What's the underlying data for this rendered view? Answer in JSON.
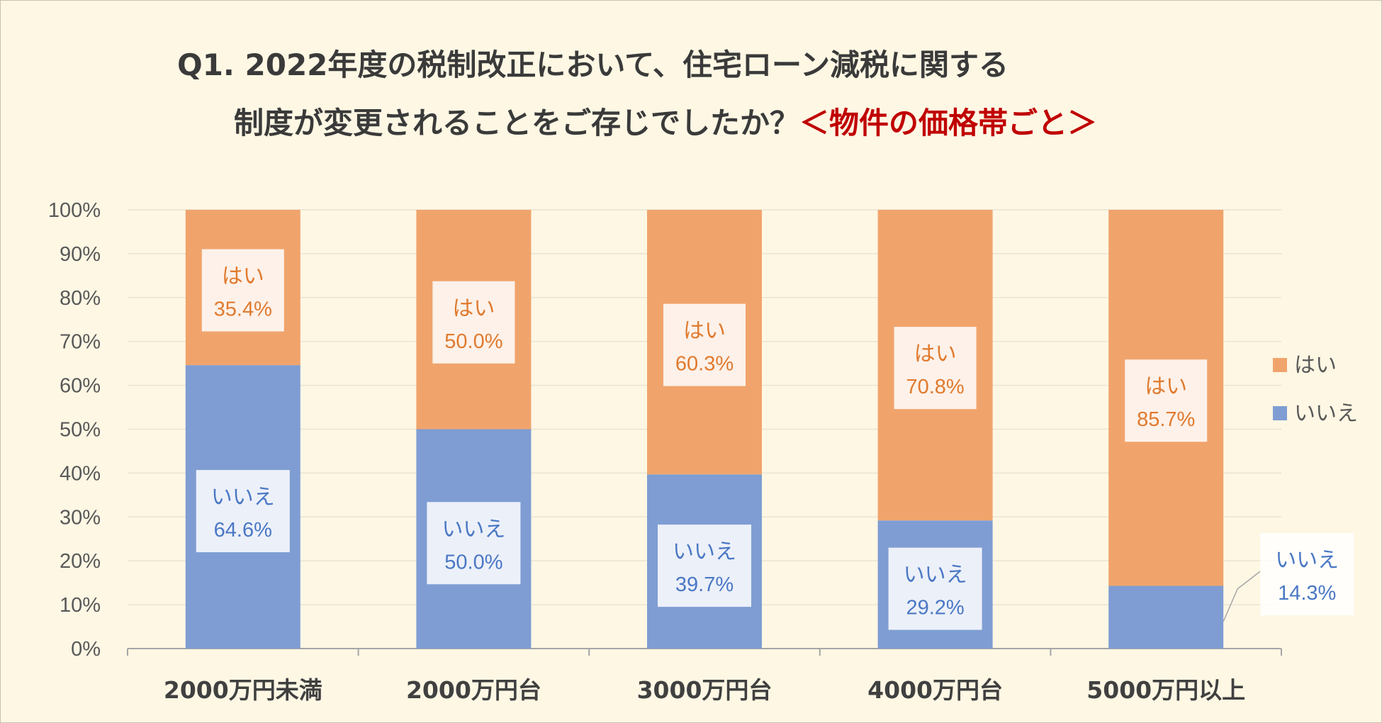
{
  "title": {
    "line1": "Q1. 2022年度の税制改正において、住宅ローン減税に関する",
    "line2": "制度が変更されることをご存じでしたか？",
    "accent": "＜物件の価格帯ごと＞"
  },
  "colors": {
    "yes": "#f0a46c",
    "no": "#7f9dd3",
    "yes_text": "#e07a2e",
    "no_text": "#4a78c4",
    "grid": "#e9e4d4",
    "axis": "#a6a6a6"
  },
  "chart_data": {
    "type": "bar",
    "stacked": true,
    "categories": [
      "2000万円未満",
      "2000万円台",
      "3000万円台",
      "4000万円台",
      "5000万円以上"
    ],
    "series": [
      {
        "name": "いいえ",
        "values": [
          64.6,
          50.0,
          39.7,
          29.2,
          14.3
        ],
        "labels": [
          "64.6%",
          "50.0%",
          "39.7%",
          "29.2%",
          "14.3%"
        ]
      },
      {
        "name": "はい",
        "values": [
          35.4,
          50.0,
          60.3,
          70.8,
          85.7
        ],
        "labels": [
          "35.4%",
          "50.0%",
          "60.3%",
          "70.8%",
          "85.7%"
        ]
      }
    ],
    "ylim": [
      0,
      100
    ],
    "yticks": [
      "0%",
      "10%",
      "20%",
      "30%",
      "40%",
      "50%",
      "60%",
      "70%",
      "80%",
      "90%",
      "100%"
    ],
    "grid": true,
    "legend": {
      "position": "right",
      "items": [
        "はい",
        "いいえ"
      ]
    }
  }
}
